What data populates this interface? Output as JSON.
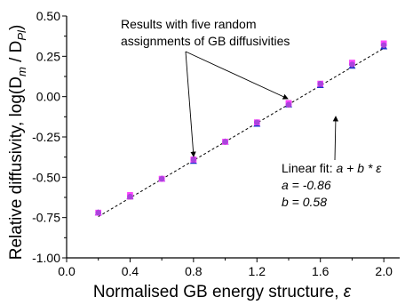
{
  "chart_data": {
    "type": "scatter",
    "x": [
      0.2,
      0.4,
      0.6,
      0.8,
      1.0,
      1.2,
      1.4,
      1.6,
      1.8,
      2.0
    ],
    "series": [
      {
        "values": [
          -0.72,
          -0.62,
          -0.51,
          -0.4,
          -0.28,
          -0.17,
          -0.05,
          0.07,
          0.19,
          0.31
        ],
        "color": "#2233cc",
        "marker": "triangle"
      },
      {
        "values": [
          -0.72,
          -0.62,
          -0.51,
          -0.39,
          -0.28,
          -0.16,
          -0.05,
          0.08,
          0.2,
          0.32
        ],
        "color": "#cc2233",
        "marker": "circle"
      },
      {
        "values": [
          -0.72,
          -0.62,
          -0.51,
          -0.39,
          -0.28,
          -0.16,
          -0.04,
          0.08,
          0.21,
          0.33
        ],
        "color": "#e040e0",
        "marker": "square"
      },
      {
        "values": [
          -0.72,
          -0.61,
          -0.51,
          -0.39,
          -0.28,
          -0.16,
          -0.04,
          0.08,
          0.21,
          0.33
        ],
        "color": "#ff44ff",
        "marker": "square"
      },
      {
        "values": [
          -0.72,
          -0.62,
          -0.51,
          -0.39,
          -0.28,
          -0.16,
          -0.05,
          0.08,
          0.2,
          0.32
        ],
        "color": "#aa44dd",
        "marker": "circle"
      }
    ],
    "fit": {
      "a": -0.86,
      "b": 0.58,
      "x_range": [
        0.2,
        2.0
      ]
    },
    "xlabel_text": "Normalised GB energy structure, ",
    "xlabel_symbol": "ε",
    "ylabel_prefix": "Relative diffusivity, log(D",
    "ylabel_sub1": "m",
    "ylabel_mid": " / D",
    "ylabel_sub2": "Pl",
    "ylabel_suffix": ")",
    "xlim": [
      0.0,
      2.1
    ],
    "ylim": [
      -1.0,
      0.5
    ],
    "xticks": [
      "0.0",
      "0.4",
      "0.8",
      "1.2",
      "1.6",
      "2.0"
    ],
    "xtick_values": [
      0.0,
      0.4,
      0.8,
      1.2,
      1.6,
      2.0
    ],
    "yticks": [
      "-1.00",
      "-0.75",
      "-0.50",
      "-0.25",
      "0.00",
      "0.25",
      "0.50"
    ],
    "ytick_values": [
      -1.0,
      -0.75,
      -0.5,
      -0.25,
      0.0,
      0.25,
      0.5
    ],
    "grid": false,
    "annotations": {
      "results_line1": "Results with five random",
      "results_line2": "assignments of GB diffusivities",
      "fit_label": "Linear fit: ",
      "fit_formula": "a + b * ε",
      "fit_a": "a = -0.86",
      "fit_b": "b = 0.58"
    }
  }
}
